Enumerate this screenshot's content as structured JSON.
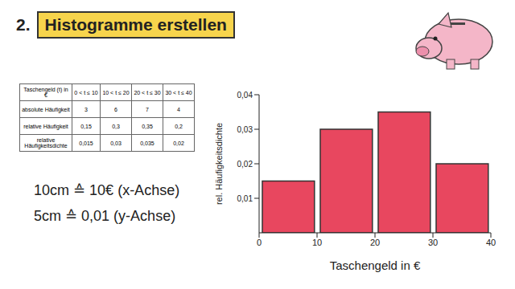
{
  "header": {
    "number": "2.",
    "title": "Histogramme erstellen"
  },
  "table": {
    "rows": [
      [
        "Taschengeld (t) in €",
        "0 < t ≤ 10",
        "10 < t ≤ 20",
        "20 < t ≤ 30",
        "30 < t ≤ 40"
      ],
      [
        "absolute Häufigkeit",
        "3",
        "6",
        "7",
        "4"
      ],
      [
        "relative Häufigkeit",
        "0,15",
        "0,3",
        "0,35",
        "0,2"
      ],
      [
        "relative Häufigkeitsdichte",
        "0,015",
        "0,03",
        "0,035",
        "0,02"
      ]
    ]
  },
  "notes": [
    "10cm ≙ 10€ (x-Achse)",
    "5cm ≙ 0,01 (y-Achse)"
  ],
  "chart_data": {
    "type": "histogram",
    "x_label": "Taschengeld in €",
    "y_label": "rel. Häufigkeitsdichte",
    "bins": [
      0,
      10,
      20,
      30,
      40
    ],
    "values": [
      0.015,
      0.03,
      0.035,
      0.02
    ],
    "color": "#e8475f",
    "xlim": [
      0,
      40
    ],
    "xticks": [
      0,
      10,
      20,
      30,
      40
    ],
    "ylim": [
      0,
      0.04
    ],
    "yticks": [
      {
        "value": 0.01,
        "label": "0,01"
      },
      {
        "value": 0.02,
        "label": "0,02"
      },
      {
        "value": 0.03,
        "label": "0,03"
      },
      {
        "value": 0.04,
        "label": "0,04"
      }
    ],
    "grid": false
  }
}
